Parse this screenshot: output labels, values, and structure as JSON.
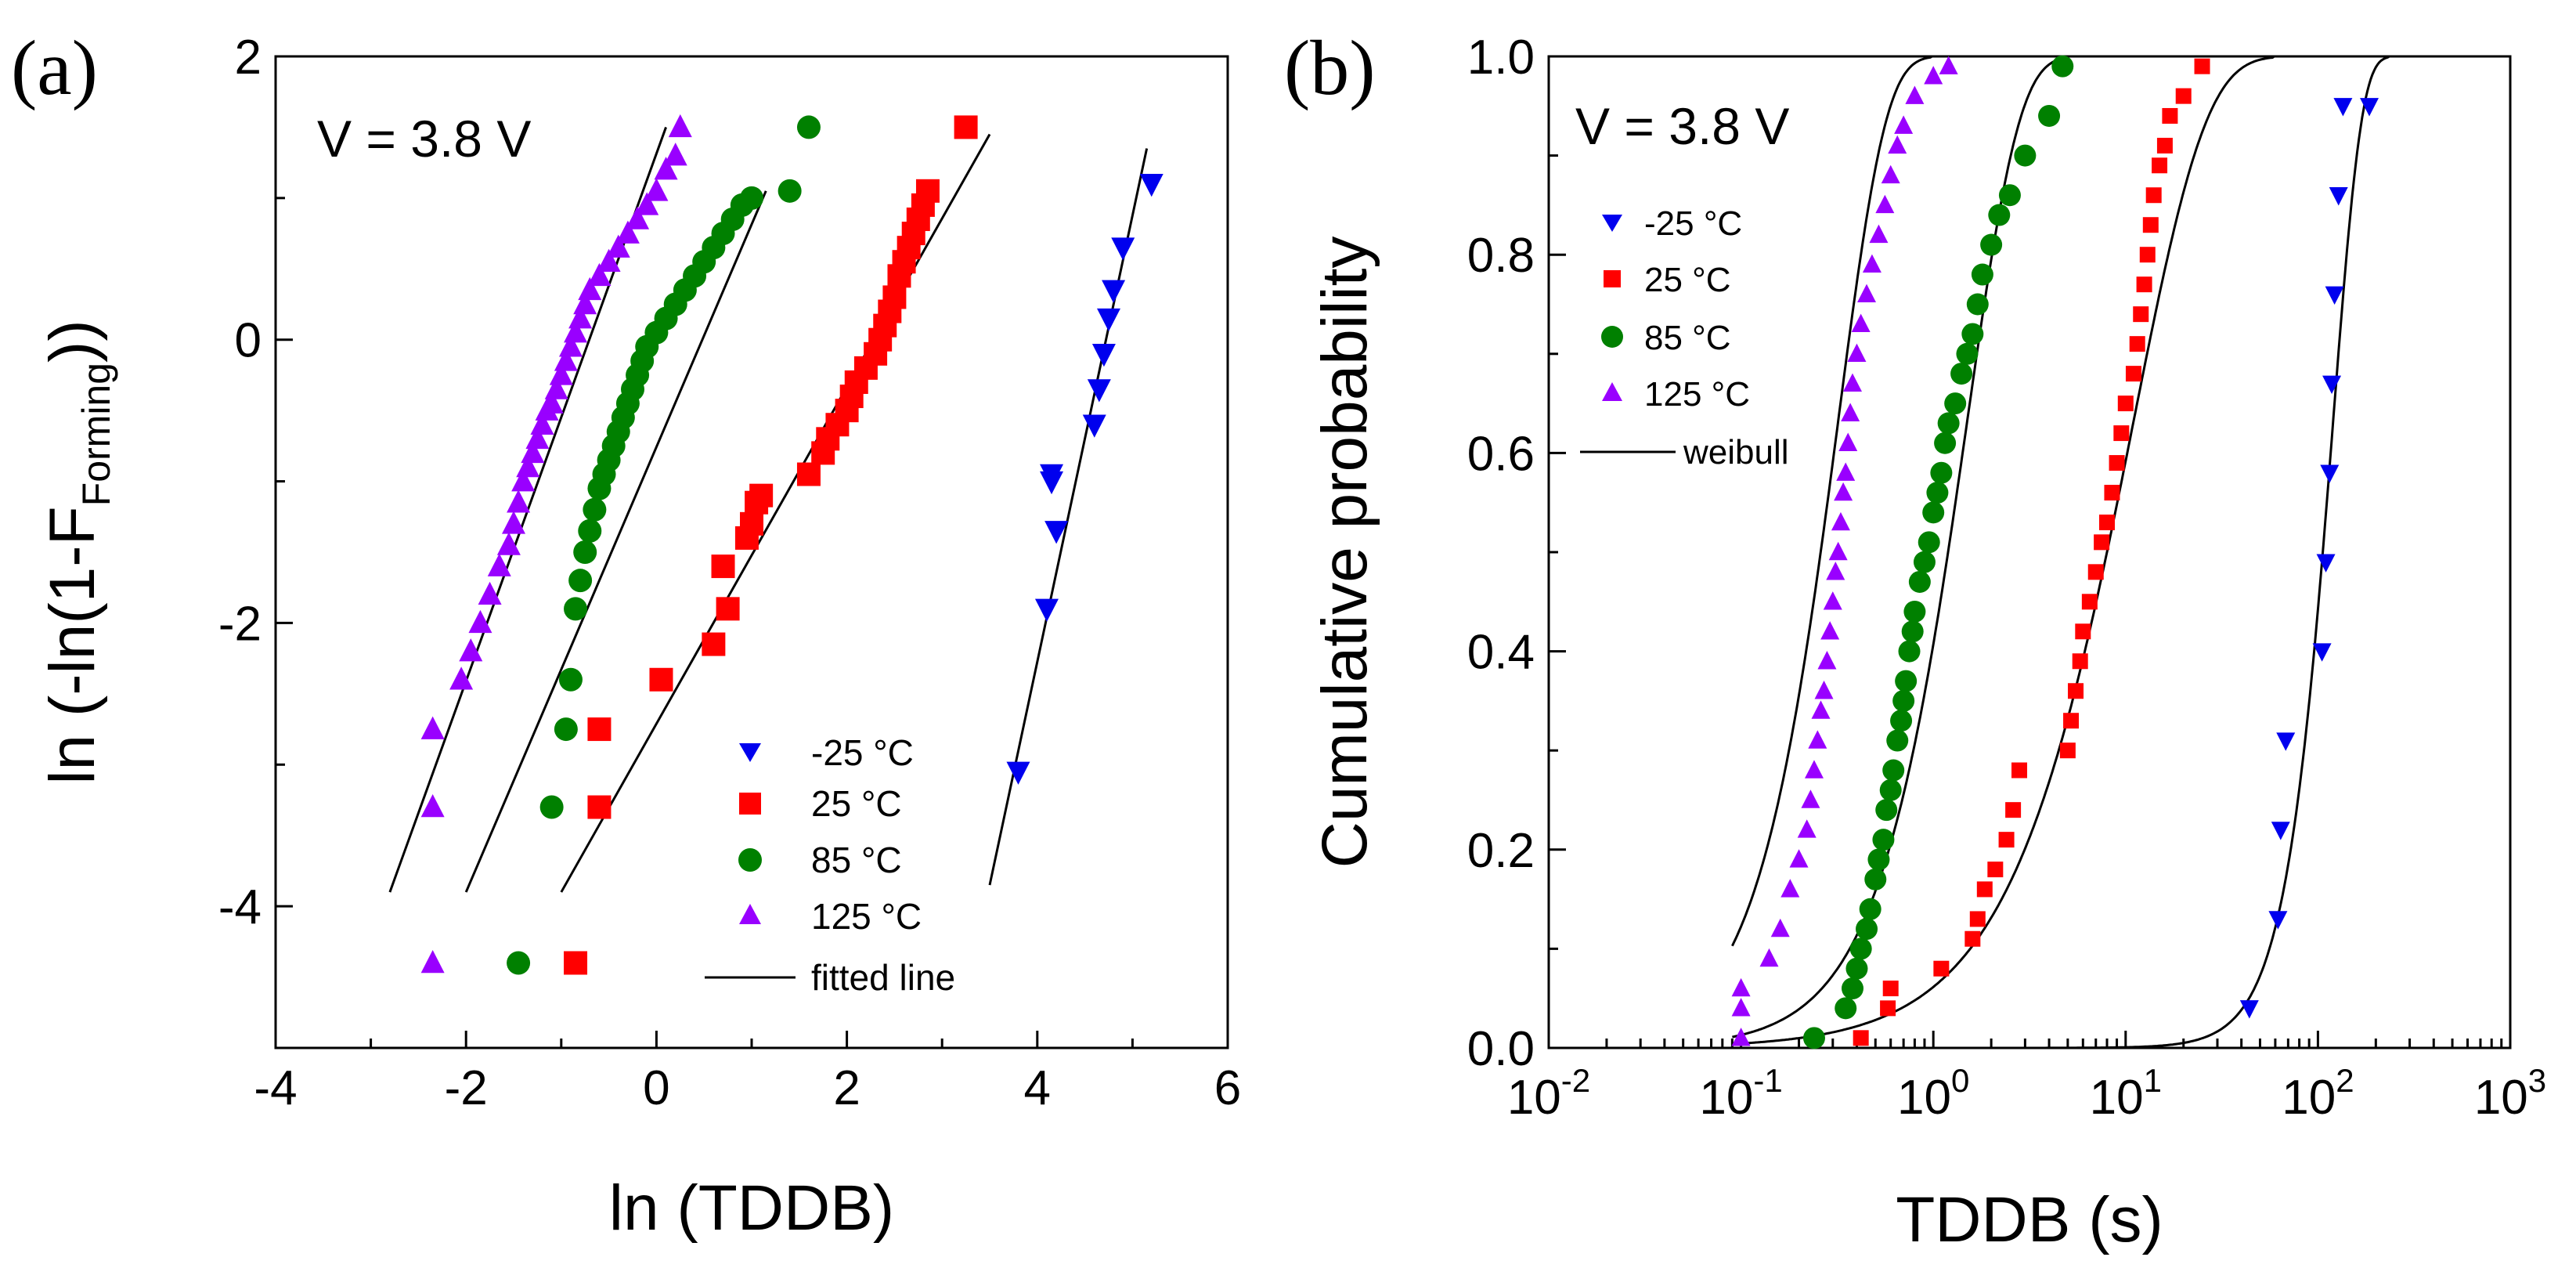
{
  "chart_data": [
    {
      "type": "scatter",
      "panel_label": "(a)",
      "annotation": "V = 3.8 V",
      "xlabel": "ln (TDDB)",
      "ylabel_prefix": "ln (-ln(1-F",
      "ylabel_sub": "Forming",
      "ylabel_suffix": "))",
      "xlim": [
        -4,
        6
      ],
      "ylim": [
        -5,
        2
      ],
      "xticks": [
        -4,
        -2,
        0,
        2,
        4,
        6
      ],
      "xtick_labels": [
        "-4",
        "-2",
        "0",
        "2",
        "4",
        "6"
      ],
      "yticks": [
        -4,
        -2,
        0,
        2
      ],
      "ytick_labels": [
        "-4",
        "-2",
        "0",
        "2"
      ],
      "fit_label": "fitted line",
      "series": [
        {
          "name": "-25 °C",
          "color": "#0000ee",
          "marker": "triangle-down",
          "x": [
            3.8,
            4.1,
            4.2,
            4.15,
            4.15,
            4.6,
            4.65,
            4.7,
            4.75,
            4.8,
            4.9,
            5.2
          ],
          "y": [
            -3.05,
            -1.9,
            -1.35,
            -1.0,
            -0.95,
            -0.6,
            -0.35,
            -0.1,
            0.15,
            0.35,
            0.65,
            1.1
          ],
          "fit": [
            [
              3.5,
              -3.85
            ],
            [
              5.15,
              1.35
            ]
          ]
        },
        {
          "name": "25 °C",
          "color": "#ff0000",
          "marker": "square",
          "x": [
            -0.85,
            -0.6,
            -0.6,
            0.05,
            0.6,
            0.75,
            0.7,
            0.95,
            1.0,
            1.05,
            1.1,
            1.6,
            1.75,
            1.8,
            1.9,
            2.0,
            2.05,
            2.1,
            2.2,
            2.3,
            2.35,
            2.4,
            2.45,
            2.5,
            2.55,
            2.6,
            2.65,
            2.7,
            2.75,
            2.8,
            2.85,
            3.25
          ],
          "y": [
            -4.4,
            -3.3,
            -2.75,
            -2.4,
            -2.15,
            -1.9,
            -1.6,
            -1.4,
            -1.3,
            -1.15,
            -1.1,
            -0.95,
            -0.8,
            -0.7,
            -0.6,
            -0.5,
            -0.4,
            -0.3,
            -0.2,
            -0.1,
            0.0,
            0.1,
            0.2,
            0.3,
            0.45,
            0.55,
            0.65,
            0.75,
            0.85,
            0.95,
            1.05,
            1.5
          ],
          "fit": [
            [
              -1.0,
              -3.9
            ],
            [
              3.5,
              1.45
            ]
          ]
        },
        {
          "name": "85 °C",
          "color": "#008000",
          "marker": "circle",
          "x": [
            -1.45,
            -1.1,
            -0.95,
            -0.9,
            -0.85,
            -0.8,
            -0.75,
            -0.7,
            -0.65,
            -0.6,
            -0.55,
            -0.5,
            -0.45,
            -0.4,
            -0.35,
            -0.3,
            -0.25,
            -0.2,
            -0.15,
            -0.1,
            0.0,
            0.1,
            0.2,
            0.3,
            0.4,
            0.5,
            0.6,
            0.7,
            0.8,
            0.9,
            1.0,
            1.4,
            1.6
          ],
          "y": [
            -4.4,
            -3.3,
            -2.75,
            -2.4,
            -1.9,
            -1.7,
            -1.5,
            -1.35,
            -1.2,
            -1.05,
            -0.95,
            -0.85,
            -0.75,
            -0.65,
            -0.55,
            -0.45,
            -0.35,
            -0.25,
            -0.15,
            -0.05,
            0.05,
            0.15,
            0.25,
            0.35,
            0.45,
            0.55,
            0.65,
            0.75,
            0.85,
            0.95,
            1.0,
            1.05,
            1.5
          ],
          "fit": [
            [
              -2.0,
              -3.9
            ],
            [
              1.15,
              1.05
            ]
          ]
        },
        {
          "name": "125 °C",
          "color": "#9900ff",
          "marker": "triangle-up",
          "x": [
            -2.35,
            -2.35,
            -2.35,
            -2.05,
            -1.95,
            -1.85,
            -1.75,
            -1.65,
            -1.55,
            -1.5,
            -1.45,
            -1.4,
            -1.35,
            -1.3,
            -1.25,
            -1.2,
            -1.15,
            -1.1,
            -1.05,
            -1.0,
            -0.95,
            -0.9,
            -0.85,
            -0.8,
            -0.75,
            -0.7,
            -0.6,
            -0.5,
            -0.4,
            -0.3,
            -0.2,
            -0.1,
            0.0,
            0.1,
            0.2,
            0.25
          ],
          "y": [
            -4.4,
            -3.3,
            -2.75,
            -2.4,
            -2.2,
            -2.0,
            -1.8,
            -1.6,
            -1.45,
            -1.3,
            -1.15,
            -1.0,
            -0.9,
            -0.8,
            -0.7,
            -0.6,
            -0.5,
            -0.45,
            -0.35,
            -0.25,
            -0.15,
            -0.05,
            0.05,
            0.15,
            0.25,
            0.35,
            0.45,
            0.55,
            0.65,
            0.75,
            0.85,
            0.95,
            1.05,
            1.2,
            1.3,
            1.5
          ],
          "fit": [
            [
              -2.8,
              -3.9
            ],
            [
              0.1,
              1.5
            ]
          ]
        }
      ]
    },
    {
      "type": "scatter",
      "panel_label": "(b)",
      "annotation": "V = 3.8 V",
      "xlabel": "TDDB (s)",
      "ylabel": "Cumulative probability",
      "xscale": "log",
      "xlim": [
        0.01,
        1000
      ],
      "ylim": [
        0.0,
        1.0
      ],
      "xtick_exponents": [
        "-2",
        "-1",
        "0",
        "1",
        "2",
        "3"
      ],
      "xtick_base": "10",
      "yticks": [
        0.0,
        0.2,
        0.4,
        0.6,
        0.8,
        1.0
      ],
      "ytick_labels": [
        "0.0",
        "0.2",
        "0.4",
        "0.6",
        "0.8",
        "1.0"
      ],
      "fit_label": "weibull",
      "series": [
        {
          "name": "-25 °C",
          "color": "#0000ee",
          "marker": "triangle-down",
          "x": [
            44,
            62,
            64,
            68,
            105,
            110,
            115,
            118,
            122,
            128,
            135,
            185
          ],
          "y": [
            0.04,
            0.13,
            0.22,
            0.31,
            0.4,
            0.49,
            0.58,
            0.67,
            0.76,
            0.86,
            0.95,
            0.95
          ],
          "weibull": {
            "beta": 2.95,
            "eta": 120
          }
        },
        {
          "name": "25 °C",
          "color": "#ff0000",
          "marker": "square",
          "x": [
            0.42,
            0.58,
            0.6,
            1.1,
            1.6,
            1.7,
            1.85,
            2.1,
            2.4,
            2.6,
            2.8,
            5.0,
            5.2,
            5.5,
            5.8,
            6.0,
            6.5,
            7.0,
            7.5,
            8.0,
            8.5,
            9.0,
            9.5,
            10.0,
            11.0,
            11.5,
            12.0,
            12.5,
            13.0,
            13.5,
            14.0,
            15.0,
            16.0,
            17.0,
            20.0,
            25.0
          ],
          "y": [
            0.01,
            0.04,
            0.06,
            0.08,
            0.11,
            0.13,
            0.16,
            0.18,
            0.21,
            0.24,
            0.28,
            0.3,
            0.33,
            0.36,
            0.39,
            0.42,
            0.45,
            0.48,
            0.51,
            0.53,
            0.56,
            0.59,
            0.62,
            0.65,
            0.68,
            0.71,
            0.74,
            0.77,
            0.8,
            0.83,
            0.86,
            0.89,
            0.91,
            0.94,
            0.96,
            0.99
          ],
          "weibull": {
            "beta": 1.15,
            "eta": 11
          }
        },
        {
          "name": "85 °C",
          "color": "#008000",
          "marker": "circle",
          "x": [
            0.24,
            0.35,
            0.38,
            0.4,
            0.42,
            0.45,
            0.47,
            0.5,
            0.52,
            0.55,
            0.57,
            0.6,
            0.62,
            0.65,
            0.68,
            0.7,
            0.72,
            0.75,
            0.78,
            0.8,
            0.85,
            0.9,
            0.95,
            1.0,
            1.05,
            1.1,
            1.15,
            1.2,
            1.3,
            1.4,
            1.5,
            1.6,
            1.7,
            1.8,
            2.0,
            2.2,
            2.5,
            3.0,
            4.0,
            4.7
          ],
          "y": [
            0.01,
            0.04,
            0.06,
            0.08,
            0.1,
            0.12,
            0.14,
            0.17,
            0.19,
            0.21,
            0.24,
            0.26,
            0.28,
            0.31,
            0.33,
            0.35,
            0.37,
            0.4,
            0.42,
            0.44,
            0.47,
            0.49,
            0.51,
            0.54,
            0.56,
            0.58,
            0.61,
            0.63,
            0.65,
            0.68,
            0.7,
            0.72,
            0.75,
            0.78,
            0.81,
            0.84,
            0.86,
            0.9,
            0.94,
            0.99
          ],
          "weibull": {
            "beta": 1.6,
            "eta": 1.5
          }
        },
        {
          "name": "125 °C",
          "color": "#9900ff",
          "marker": "triangle-up",
          "x": [
            0.1,
            0.1,
            0.1,
            0.14,
            0.16,
            0.18,
            0.2,
            0.22,
            0.23,
            0.24,
            0.25,
            0.26,
            0.27,
            0.28,
            0.29,
            0.3,
            0.31,
            0.32,
            0.33,
            0.34,
            0.35,
            0.36,
            0.37,
            0.38,
            0.4,
            0.42,
            0.45,
            0.48,
            0.52,
            0.56,
            0.6,
            0.65,
            0.7,
            0.8,
            1.0,
            1.2
          ],
          "y": [
            0.01,
            0.04,
            0.06,
            0.09,
            0.12,
            0.16,
            0.19,
            0.22,
            0.25,
            0.28,
            0.31,
            0.34,
            0.36,
            0.39,
            0.42,
            0.45,
            0.48,
            0.5,
            0.53,
            0.56,
            0.58,
            0.61,
            0.64,
            0.67,
            0.7,
            0.73,
            0.76,
            0.79,
            0.82,
            0.85,
            0.88,
            0.91,
            0.93,
            0.96,
            0.98,
            0.99
          ],
          "weibull": {
            "beta": 1.75,
            "eta": 0.32
          }
        }
      ]
    }
  ]
}
